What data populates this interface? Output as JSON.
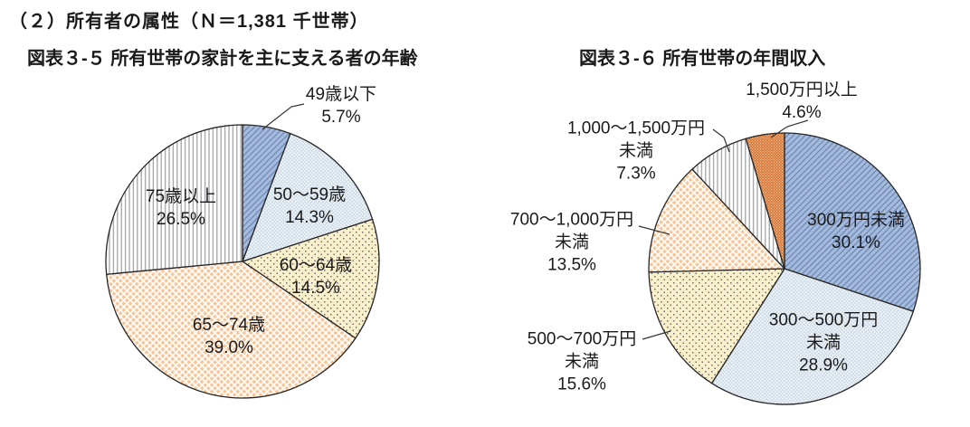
{
  "header": {
    "title": "（２）所有者の属性（Ｎ＝1,381 千世帯）"
  },
  "style": {
    "text_color": "#1a1a1a",
    "slice_stroke": "#262626",
    "leader_color": "#333333"
  },
  "patterns": {
    "blue-diag": {
      "type": "diag-hatch",
      "bg": "#A2BBE3",
      "fg": "#72829D"
    },
    "ltblue-dots": {
      "type": "checker",
      "bg": "#CDDFF2",
      "fg": "#FFFFFF"
    },
    "cream-dots": {
      "type": "sparse-dots",
      "bg": "#FBF0CC",
      "fg": "#6E6E6E"
    },
    "peach-diamond": {
      "type": "diamond-cross",
      "bg": "#FAC392",
      "fg": "#FFFFFF"
    },
    "white-vert": {
      "type": "vert-lines",
      "bg": "#FFFFFF",
      "fg": "#9DA0A3"
    },
    "orange-dots": {
      "type": "checker-fine",
      "bg": "#DC7C3C",
      "fg": "#F2CDAE"
    }
  },
  "chart_data": [
    {
      "type": "pie",
      "title": "図表３-５ 所有世帯の家計を主に支える者の年齢",
      "start_angle_deg": 0,
      "direction": "clockwise",
      "legend_position": "none",
      "slices": [
        {
          "label": "49歳以下",
          "pct": "5.7%",
          "value": 5.7,
          "pattern": "blue-diag"
        },
        {
          "label": "50～59歳",
          "pct": "14.3%",
          "value": 14.3,
          "pattern": "ltblue-dots"
        },
        {
          "label": "60～64歳",
          "pct": "14.5%",
          "value": 14.5,
          "pattern": "cream-dots"
        },
        {
          "label": "65～74歳",
          "pct": "39.0%",
          "value": 39.0,
          "pattern": "peach-diamond"
        },
        {
          "label": "75歳以上",
          "pct": "26.5%",
          "value": 26.5,
          "pattern": "white-vert"
        }
      ]
    },
    {
      "type": "pie",
      "title": "図表３-６ 所有世帯の年間収入",
      "start_angle_deg": 0,
      "direction": "clockwise",
      "legend_position": "none",
      "slices": [
        {
          "label": "300万円未満",
          "pct": "30.1%",
          "value": 30.1,
          "pattern": "blue-diag"
        },
        {
          "label": "300～500万円",
          "label2": "未満",
          "pct": "28.9%",
          "value": 28.9,
          "pattern": "ltblue-dots"
        },
        {
          "label": "500～700万円",
          "label2": "未満",
          "pct": "15.6%",
          "value": 15.6,
          "pattern": "cream-dots"
        },
        {
          "label": "700～1,000万円",
          "label2": "未満",
          "pct": "13.5%",
          "value": 13.5,
          "pattern": "peach-diamond"
        },
        {
          "label": "1,000～1,500万円",
          "label2": "未満",
          "pct": "7.3%",
          "value": 7.3,
          "pattern": "white-vert"
        },
        {
          "label": "1,500万円以上",
          "pct": "4.6%",
          "value": 4.6,
          "pattern": "orange-dots"
        }
      ]
    }
  ]
}
